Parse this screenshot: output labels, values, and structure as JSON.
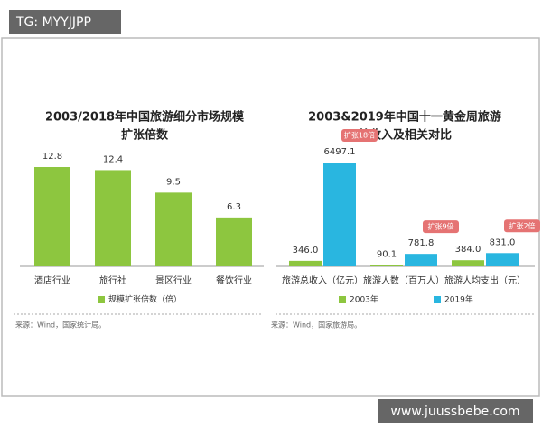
{
  "tag": "TG: MYYJJPP",
  "site": "www.juussbebe.com",
  "chart_data": [
    {
      "type": "bar",
      "title": [
        "2003/2018年中国旅游细分市场规模",
        "扩张倍数"
      ],
      "categories": [
        "酒店行业",
        "旅行社",
        "景区行业",
        "餐饮行业"
      ],
      "series": [
        {
          "name": "规模扩张倍数（倍）",
          "color": "#8dc63f",
          "values": [
            12.8,
            12.4,
            9.5,
            6.3
          ]
        }
      ],
      "source": "来源：Wind，国家统计局。"
    },
    {
      "type": "grouped-bar",
      "title": [
        "2003&2019年中国十一黄金周旅游",
        "总收入及相关对比"
      ],
      "categories": [
        "旅游总收入（亿元）",
        "旅游人数（百万人）",
        "旅游人均支出（元）"
      ],
      "series": [
        {
          "name": "2003年",
          "color": "#8dc63f",
          "values": [
            346,
            90.1,
            384
          ],
          "value_labels": [
            "346.0",
            "90.1",
            "384.0"
          ]
        },
        {
          "name": "2019年",
          "color": "#29b6e0",
          "values": [
            6497.1,
            781.8,
            831
          ],
          "value_labels": [
            "6497.1",
            "781.8",
            "831.0"
          ]
        }
      ],
      "annotations": [
        "扩张18倍",
        "扩张9倍",
        "扩张2倍"
      ],
      "source": "来源：Wind，国家旅游局。"
    }
  ]
}
